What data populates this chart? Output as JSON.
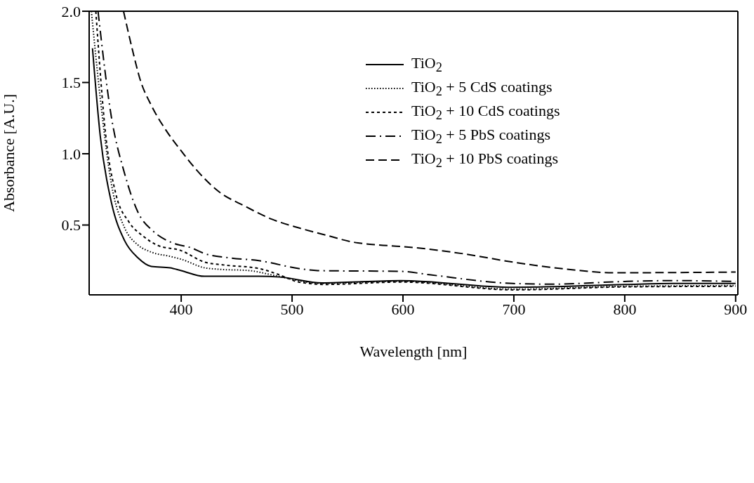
{
  "chart_data": {
    "type": "line",
    "xlabel": "Wavelength [nm]",
    "ylabel": "Absorbance [A.U.]",
    "xlim": [
      317,
      902
    ],
    "ylim": [
      0.01,
      2.0
    ],
    "xticks": [
      400,
      500,
      600,
      700,
      800,
      900
    ],
    "yticks": [
      {
        "value": 0.5,
        "label": "0.5"
      },
      {
        "value": 1.0,
        "label": "1.0"
      },
      {
        "value": 1.5,
        "label": "1.5"
      },
      {
        "value": 2.0,
        "label": "2.0"
      }
    ],
    "legend": "top right",
    "marker": "none",
    "series": [
      {
        "name": "TiO$_{2}$",
        "color": "#000000",
        "line_style": "solid",
        "x": [
          320,
          327,
          337,
          349,
          361,
          373,
          390,
          400,
          421,
          433,
          470,
          489,
          527,
          598,
          699,
          800,
          844,
          900
        ],
        "values": [
          1.74,
          1.125,
          0.66,
          0.39,
          0.27,
          0.21,
          0.2,
          0.18,
          0.14,
          0.14,
          0.14,
          0.135,
          0.094,
          0.11,
          0.063,
          0.083,
          0.09,
          0.09
        ]
      },
      {
        "name": "TiO$_{2}$ + 5 CdS coatings",
        "color": "#000000",
        "line_style": "dotted",
        "x": [
          319,
          327,
          337,
          349,
          361,
          373,
          390,
          400,
          421,
          433,
          462,
          482,
          527,
          598,
          700,
          800,
          900
        ],
        "values": [
          2.0,
          1.39,
          0.79,
          0.48,
          0.36,
          0.31,
          0.28,
          0.26,
          0.2,
          0.19,
          0.18,
          0.15,
          0.09,
          0.105,
          0.05,
          0.07,
          0.075
        ]
      },
      {
        "name": "TiO$_{2}$ + 10 CdS coatings",
        "color": "#000000",
        "line_style": "dashed",
        "x": [
          323,
          332,
          341,
          353,
          366,
          378,
          400,
          421,
          438,
          470,
          487,
          506,
          530,
          598,
          700,
          800,
          900
        ],
        "values": [
          2.0,
          1.125,
          0.72,
          0.52,
          0.42,
          0.36,
          0.32,
          0.24,
          0.22,
          0.195,
          0.155,
          0.1,
          0.083,
          0.1,
          0.045,
          0.066,
          0.07
        ]
      },
      {
        "name": "TiO$_{2}$ + 5 PbS coatings",
        "color": "#000000",
        "line_style": "dashdot",
        "x": [
          325,
          337,
          349,
          361,
          375,
          392,
          409,
          421,
          443,
          470,
          506,
          523,
          598,
          625,
          699,
          735,
          800,
          844,
          900
        ],
        "values": [
          2.0,
          1.26,
          0.86,
          0.59,
          0.455,
          0.375,
          0.34,
          0.3,
          0.27,
          0.25,
          0.195,
          0.18,
          0.175,
          0.15,
          0.09,
          0.085,
          0.104,
          0.11,
          0.104
        ]
      },
      {
        "name": "TiO$_{2}$ + 10 PbS coatings",
        "color": "#000000",
        "line_style": "longdash",
        "x": [
          348,
          356,
          363,
          373,
          385,
          400,
          414,
          433,
          458,
          482,
          506,
          530,
          555,
          578,
          598,
          653,
          699,
          748,
          789,
          900
        ],
        "values": [
          2.0,
          1.73,
          1.52,
          1.34,
          1.18,
          1.02,
          0.885,
          0.74,
          0.63,
          0.54,
          0.48,
          0.43,
          0.38,
          0.36,
          0.35,
          0.3,
          0.24,
          0.19,
          0.165,
          0.17
        ]
      }
    ]
  }
}
